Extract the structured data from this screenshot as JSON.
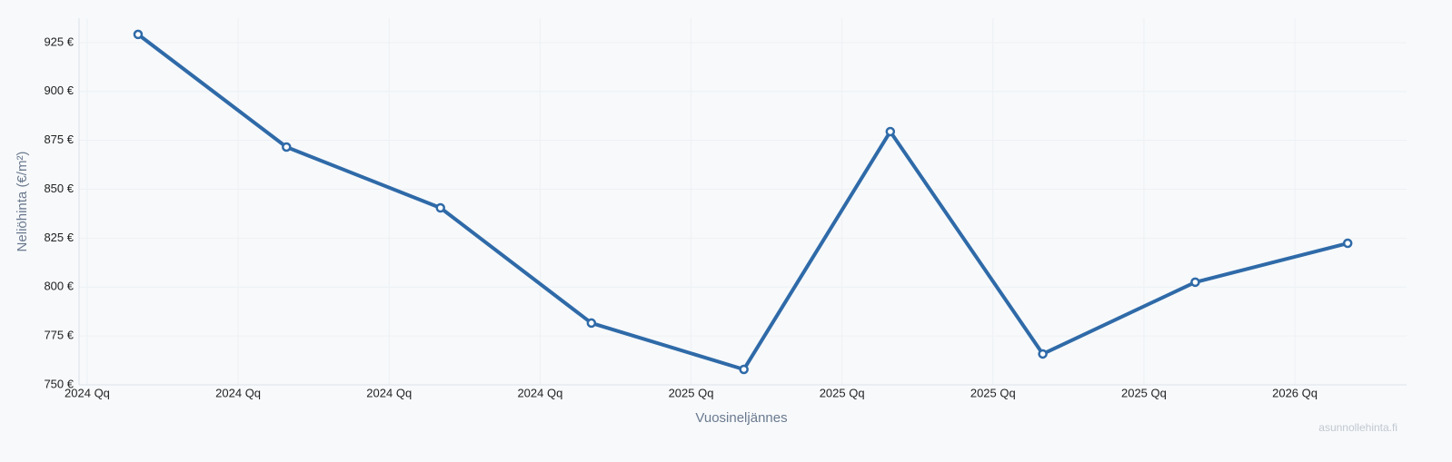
{
  "chart_data": {
    "type": "line",
    "x_label": "Vuosineljännes",
    "y_label": "Neliöhinta (€/m²)",
    "watermark": "asunnollehinta.fi",
    "xlim": [
      -0.054,
      8.74
    ],
    "xticks": [
      {
        "value": 0,
        "label": "2024 Qq"
      },
      {
        "value": 1,
        "label": "2024 Qq"
      },
      {
        "value": 2,
        "label": "2024 Qq"
      },
      {
        "value": 3,
        "label": "2024 Qq"
      },
      {
        "value": 4,
        "label": "2025 Qq"
      },
      {
        "value": 5,
        "label": "2025 Qq"
      },
      {
        "value": 6,
        "label": "2025 Qq"
      },
      {
        "value": 7,
        "label": "2025 Qq"
      },
      {
        "value": 8,
        "label": "2026 Qq"
      }
    ],
    "ylim": [
      750,
      937.5
    ],
    "yticks": [
      {
        "value": 750,
        "label": "750 €"
      },
      {
        "value": 775,
        "label": "775 €"
      },
      {
        "value": 800,
        "label": "800 €"
      },
      {
        "value": 825,
        "label": "825 €"
      },
      {
        "value": 850,
        "label": "850 €"
      },
      {
        "value": 875,
        "label": "875 €"
      },
      {
        "value": 900,
        "label": "900 €"
      },
      {
        "value": 925,
        "label": "925 €"
      }
    ],
    "grid": true,
    "x": [
      0.337,
      1.32,
      2.34,
      3.34,
      4.35,
      5.32,
      6.33,
      7.34,
      8.35
    ],
    "series": [
      {
        "color": "#2f6aa8",
        "values": [
          929.2,
          871.6,
          840.5,
          781.6,
          757.9,
          879.5,
          765.8,
          802.5,
          822.4
        ]
      }
    ]
  }
}
